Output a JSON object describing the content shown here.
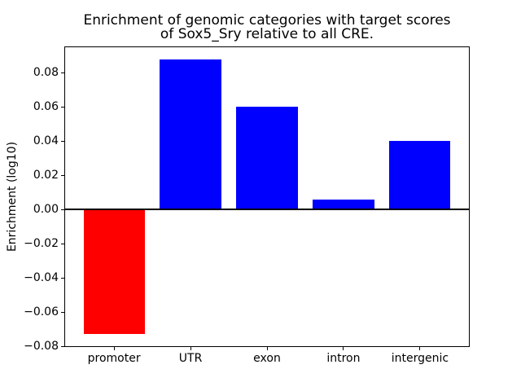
{
  "chart_data": {
    "type": "bar",
    "title": "Enrichment of genomic categories with target scores\nof Sox5_Sry relative to all CRE.",
    "xlabel": "",
    "ylabel": "Enrichment (log10)",
    "categories": [
      "promoter",
      "UTR",
      "exon",
      "intron",
      "intergenic"
    ],
    "values": [
      -0.073,
      0.088,
      0.06,
      0.006,
      0.04
    ],
    "bar_colors": [
      "#ff0000",
      "#0000ff",
      "#0000ff",
      "#0000ff",
      "#0000ff"
    ],
    "positive_color": "#0000ff",
    "negative_color": "#ff0000",
    "yticks": [
      -0.08,
      -0.06,
      -0.04,
      -0.02,
      0.0,
      0.02,
      0.04,
      0.06,
      0.08
    ],
    "ylim": [
      -0.08,
      0.095
    ],
    "xlim": [
      -0.64,
      4.64
    ],
    "bar_width": 0.8,
    "grid": false,
    "legend": null,
    "zero_line": true,
    "background": "#ffffff",
    "axis_color": "#000000"
  }
}
